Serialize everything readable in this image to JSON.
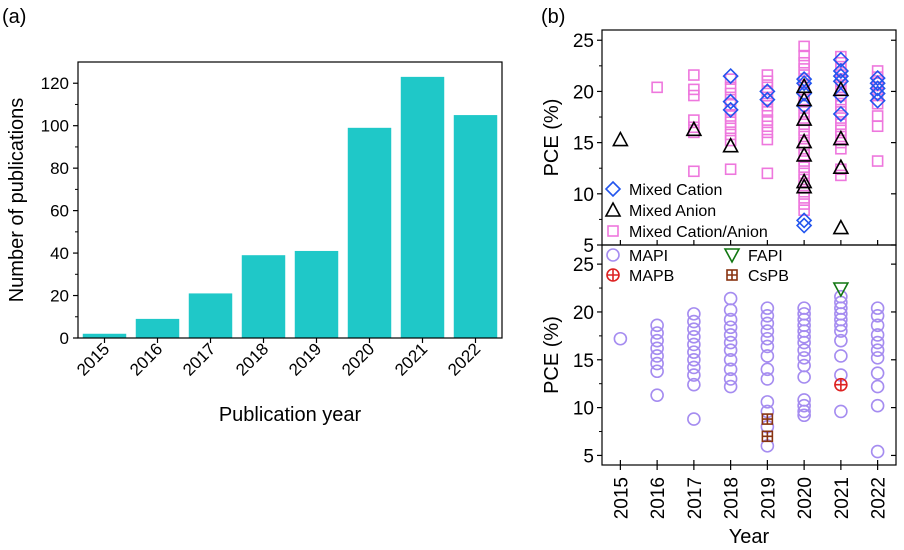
{
  "panel_labels": [
    "(a)",
    "(b)"
  ],
  "chart_data": [
    {
      "panel": "(a)",
      "type": "bar",
      "categories": [
        "2015",
        "2016",
        "2017",
        "2018",
        "2019",
        "2020",
        "2021",
        "2022"
      ],
      "values": [
        2,
        9,
        21,
        39,
        41,
        99,
        123,
        105
      ],
      "xlabel": "Publication year",
      "ylabel": "Number of publications",
      "ylim": [
        0,
        130
      ],
      "yticks": [
        0,
        20,
        40,
        60,
        80,
        100,
        120
      ],
      "bar_color": "#1FC8C8",
      "grid": false
    },
    {
      "panel": "(b) top",
      "type": "scatter",
      "x_categories": [
        "2015",
        "2016",
        "2017",
        "2018",
        "2019",
        "2020",
        "2021",
        "2022"
      ],
      "ylabel": "PCE (%)",
      "ylim": [
        5,
        26
      ],
      "yticks": [
        5,
        10,
        15,
        20,
        25
      ],
      "legend_position": "bottom-left",
      "series": [
        {
          "name": "Mixed Cation Anion",
          "label": "Mixed Cation/Anion",
          "marker": "square",
          "color": "#EE77DD",
          "points": [
            [
              "2016",
              20.4
            ],
            [
              "2017",
              21.6
            ],
            [
              "2017",
              20.2
            ],
            [
              "2017",
              19.6
            ],
            [
              "2017",
              17.2
            ],
            [
              "2017",
              16.5
            ],
            [
              "2017",
              16.0
            ],
            [
              "2017",
              12.2
            ],
            [
              "2018",
              21.2
            ],
            [
              "2018",
              20.4
            ],
            [
              "2018",
              19.8
            ],
            [
              "2018",
              19.2
            ],
            [
              "2018",
              18.7
            ],
            [
              "2018",
              18.2
            ],
            [
              "2018",
              17.6
            ],
            [
              "2018",
              17.0
            ],
            [
              "2018",
              16.4
            ],
            [
              "2018",
              15.8
            ],
            [
              "2018",
              15.2
            ],
            [
              "2018",
              12.4
            ],
            [
              "2019",
              21.6
            ],
            [
              "2019",
              21.0
            ],
            [
              "2019",
              20.4
            ],
            [
              "2019",
              19.8
            ],
            [
              "2019",
              19.2
            ],
            [
              "2019",
              18.6
            ],
            [
              "2019",
              18.0
            ],
            [
              "2019",
              17.2
            ],
            [
              "2019",
              16.6
            ],
            [
              "2019",
              16.0
            ],
            [
              "2019",
              15.3
            ],
            [
              "2019",
              12.0
            ],
            [
              "2020",
              24.4
            ],
            [
              "2020",
              23.5
            ],
            [
              "2020",
              22.8
            ],
            [
              "2020",
              22.2
            ],
            [
              "2020",
              21.6
            ],
            [
              "2020",
              21.0
            ],
            [
              "2020",
              20.4
            ],
            [
              "2020",
              19.8
            ],
            [
              "2020",
              19.2
            ],
            [
              "2020",
              18.6
            ],
            [
              "2020",
              18.0
            ],
            [
              "2020",
              17.4
            ],
            [
              "2020",
              16.8
            ],
            [
              "2020",
              16.2
            ],
            [
              "2020",
              15.6
            ],
            [
              "2020",
              15.0
            ],
            [
              "2020",
              14.4
            ],
            [
              "2020",
              13.8
            ],
            [
              "2020",
              13.2
            ],
            [
              "2020",
              12.6
            ],
            [
              "2020",
              12.0
            ],
            [
              "2020",
              11.4
            ],
            [
              "2020",
              10.8
            ],
            [
              "2020",
              10.2
            ],
            [
              "2020",
              9.6
            ],
            [
              "2020",
              9.0
            ],
            [
              "2020",
              8.4
            ],
            [
              "2021",
              23.4
            ],
            [
              "2021",
              22.8
            ],
            [
              "2021",
              22.2
            ],
            [
              "2021",
              21.6
            ],
            [
              "2021",
              21.0
            ],
            [
              "2021",
              20.4
            ],
            [
              "2021",
              19.8
            ],
            [
              "2021",
              19.2
            ],
            [
              "2021",
              18.6
            ],
            [
              "2021",
              18.0
            ],
            [
              "2021",
              17.4
            ],
            [
              "2021",
              16.8
            ],
            [
              "2021",
              16.2
            ],
            [
              "2021",
              15.6
            ],
            [
              "2021",
              15.0
            ],
            [
              "2021",
              14.4
            ],
            [
              "2021",
              12.4
            ],
            [
              "2021",
              11.8
            ],
            [
              "2022",
              22.0
            ],
            [
              "2022",
              21.4
            ],
            [
              "2022",
              20.8
            ],
            [
              "2022",
              20.2
            ],
            [
              "2022",
              19.6
            ],
            [
              "2022",
              18.8
            ],
            [
              "2022",
              17.6
            ],
            [
              "2022",
              16.6
            ],
            [
              "2022",
              13.2
            ]
          ]
        },
        {
          "name": "Mixed Cation",
          "label": "Mixed Cation",
          "marker": "diamond",
          "color": "#2255EE",
          "points": [
            [
              "2018",
              21.5
            ],
            [
              "2018",
              19.0
            ],
            [
              "2018",
              18.2
            ],
            [
              "2019",
              20.0
            ],
            [
              "2019",
              19.2
            ],
            [
              "2020",
              21.2
            ],
            [
              "2020",
              20.8
            ],
            [
              "2020",
              19.8
            ],
            [
              "2020",
              18.6
            ],
            [
              "2020",
              7.4
            ],
            [
              "2020",
              6.9
            ],
            [
              "2021",
              23.1
            ],
            [
              "2021",
              22.0
            ],
            [
              "2021",
              21.5
            ],
            [
              "2021",
              21.0
            ],
            [
              "2021",
              19.6
            ],
            [
              "2021",
              17.8
            ],
            [
              "2022",
              21.3
            ],
            [
              "2022",
              20.8
            ],
            [
              "2022",
              20.3
            ],
            [
              "2022",
              19.8
            ],
            [
              "2022",
              19.1
            ]
          ]
        },
        {
          "name": "Mixed Anion",
          "label": "Mixed Anion",
          "marker": "triangle",
          "color": "#000000",
          "points": [
            [
              "2015",
              15.3
            ],
            [
              "2017",
              16.3
            ],
            [
              "2018",
              14.7
            ],
            [
              "2020",
              20.5
            ],
            [
              "2020",
              19.2
            ],
            [
              "2020",
              17.3
            ],
            [
              "2020",
              15.1
            ],
            [
              "2020",
              13.8
            ],
            [
              "2020",
              11.2
            ],
            [
              "2020",
              10.7
            ],
            [
              "2021",
              20.2
            ],
            [
              "2021",
              15.4
            ],
            [
              "2021",
              12.6
            ],
            [
              "2021",
              6.7
            ]
          ]
        }
      ]
    },
    {
      "panel": "(b) bottom",
      "type": "scatter",
      "x_categories": [
        "2015",
        "2016",
        "2017",
        "2018",
        "2019",
        "2020",
        "2021",
        "2022"
      ],
      "xlabel": "Year",
      "ylabel": "PCE (%)",
      "ylim": [
        4,
        27
      ],
      "yticks": [
        5,
        10,
        15,
        20,
        25
      ],
      "legend_position": "top",
      "series": [
        {
          "name": "MAPI",
          "marker": "circle",
          "color": "#A58CF0",
          "points": [
            [
              "2015",
              17.2
            ],
            [
              "2016",
              18.6
            ],
            [
              "2016",
              17.8
            ],
            [
              "2016",
              17.0
            ],
            [
              "2016",
              16.2
            ],
            [
              "2016",
              15.4
            ],
            [
              "2016",
              14.6
            ],
            [
              "2016",
              13.8
            ],
            [
              "2016",
              11.3
            ],
            [
              "2017",
              19.8
            ],
            [
              "2017",
              19.0
            ],
            [
              "2017",
              18.2
            ],
            [
              "2017",
              17.4
            ],
            [
              "2017",
              16.6
            ],
            [
              "2017",
              15.8
            ],
            [
              "2017",
              15.0
            ],
            [
              "2017",
              14.2
            ],
            [
              "2017",
              13.4
            ],
            [
              "2017",
              12.4
            ],
            [
              "2017",
              8.8
            ],
            [
              "2018",
              21.4
            ],
            [
              "2018",
              20.2
            ],
            [
              "2018",
              19.2
            ],
            [
              "2018",
              18.4
            ],
            [
              "2018",
              17.6
            ],
            [
              "2018",
              16.8
            ],
            [
              "2018",
              16.0
            ],
            [
              "2018",
              15.0
            ],
            [
              "2018",
              14.0
            ],
            [
              "2018",
              13.0
            ],
            [
              "2018",
              12.2
            ],
            [
              "2019",
              20.4
            ],
            [
              "2019",
              19.6
            ],
            [
              "2019",
              18.8
            ],
            [
              "2019",
              18.0
            ],
            [
              "2019",
              17.2
            ],
            [
              "2019",
              16.4
            ],
            [
              "2019",
              15.4
            ],
            [
              "2019",
              14.0
            ],
            [
              "2019",
              13.0
            ],
            [
              "2019",
              10.6
            ],
            [
              "2019",
              9.6
            ],
            [
              "2019",
              8.0
            ],
            [
              "2019",
              6.0
            ],
            [
              "2020",
              20.4
            ],
            [
              "2020",
              19.8
            ],
            [
              "2020",
              19.2
            ],
            [
              "2020",
              18.6
            ],
            [
              "2020",
              18.0
            ],
            [
              "2020",
              17.4
            ],
            [
              "2020",
              16.8
            ],
            [
              "2020",
              16.0
            ],
            [
              "2020",
              15.2
            ],
            [
              "2020",
              14.4
            ],
            [
              "2020",
              13.2
            ],
            [
              "2020",
              10.8
            ],
            [
              "2020",
              10.2
            ],
            [
              "2020",
              9.6
            ],
            [
              "2020",
              9.2
            ],
            [
              "2021",
              21.6
            ],
            [
              "2021",
              21.0
            ],
            [
              "2021",
              20.4
            ],
            [
              "2021",
              19.8
            ],
            [
              "2021",
              19.2
            ],
            [
              "2021",
              18.6
            ],
            [
              "2021",
              18.0
            ],
            [
              "2021",
              17.0
            ],
            [
              "2021",
              15.4
            ],
            [
              "2021",
              13.4
            ],
            [
              "2021",
              9.6
            ],
            [
              "2022",
              20.4
            ],
            [
              "2022",
              19.6
            ],
            [
              "2022",
              18.6
            ],
            [
              "2022",
              17.6
            ],
            [
              "2022",
              16.8
            ],
            [
              "2022",
              16.0
            ],
            [
              "2022",
              15.2
            ],
            [
              "2022",
              13.6
            ],
            [
              "2022",
              12.2
            ],
            [
              "2022",
              10.2
            ],
            [
              "2022",
              5.4
            ]
          ]
        },
        {
          "name": "MAPB",
          "marker": "circle-plus",
          "color": "#DD2222",
          "points": [
            [
              "2021",
              12.4
            ]
          ]
        },
        {
          "name": "FAPI",
          "marker": "triangle-down",
          "color": "#117711",
          "points": [
            [
              "2021",
              22.4
            ]
          ]
        },
        {
          "name": "CsPB",
          "marker": "square-plus",
          "color": "#883311",
          "points": [
            [
              "2019",
              8.8
            ],
            [
              "2019",
              7.0
            ]
          ]
        }
      ]
    }
  ]
}
